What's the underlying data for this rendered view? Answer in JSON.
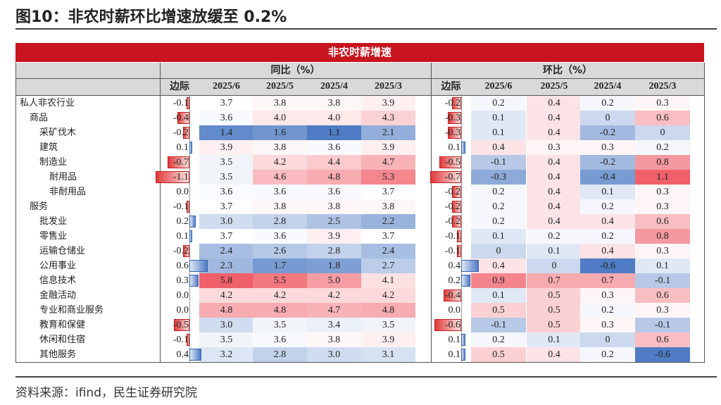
{
  "title": "图10：非农时薪环比增速放缓至 0.2%",
  "source": "资料来源：ifind，民生证券研究院",
  "chart_data": {
    "type": "table",
    "banner": "非农时薪增速",
    "groups": [
      {
        "label": "同比（%）",
        "margin_label": "边际",
        "columns": [
          "2025/6",
          "2025/5",
          "2025/4",
          "2025/3"
        ]
      },
      {
        "label": "环比（%）",
        "margin_label": "边际",
        "columns": [
          "2025/6",
          "2025/5",
          "2025/4",
          "2025/3"
        ]
      }
    ],
    "colors": {
      "banner": "#c8141e",
      "header_bg": "#d9d9d9",
      "high": "#f0606a",
      "low": "#4f7cc4"
    },
    "rows": [
      {
        "label": "私人非农行业",
        "indent": 0,
        "yoy_margin": "-0.1",
        "yoy": [
          "3.7",
          "3.8",
          "3.8",
          "3.9"
        ],
        "mom_margin": "-0.2",
        "mom": [
          "0.2",
          "0.4",
          "0.2",
          "0.3"
        ]
      },
      {
        "label": "商品",
        "indent": 1,
        "yoy_margin": "-0.4",
        "yoy": [
          "3.6",
          "4.0",
          "4.0",
          "4.3"
        ],
        "mom_margin": "-0.3",
        "mom": [
          "0.1",
          "0.4",
          "0",
          "0.6"
        ]
      },
      {
        "label": "采矿伐木",
        "indent": 2,
        "yoy_margin": "-0.2",
        "yoy": [
          "1.4",
          "1.6",
          "1.1",
          "2.1"
        ],
        "mom_margin": "-0.3",
        "mom": [
          "0.1",
          "0.4",
          "-0.2",
          "0"
        ]
      },
      {
        "label": "建筑",
        "indent": 2,
        "yoy_margin": "0.1",
        "yoy": [
          "3.9",
          "3.8",
          "3.6",
          "3.9"
        ],
        "mom_margin": "0.1",
        "mom": [
          "0.4",
          "0.3",
          "0.3",
          "0.2"
        ]
      },
      {
        "label": "制造业",
        "indent": 2,
        "yoy_margin": "-0.7",
        "yoy": [
          "3.5",
          "4.2",
          "4.4",
          "4.7"
        ],
        "mom_margin": "-0.5",
        "mom": [
          "-0.1",
          "0.4",
          "-0.2",
          "0.8"
        ]
      },
      {
        "label": "耐用品",
        "indent": 3,
        "yoy_margin": "-1.1",
        "yoy": [
          "3.5",
          "4.6",
          "4.8",
          "5.3"
        ],
        "mom_margin": "-0.7",
        "mom": [
          "-0.3",
          "0.4",
          "-0.4",
          "1.1"
        ]
      },
      {
        "label": "非耐用品",
        "indent": 3,
        "yoy_margin": "0.0",
        "yoy": [
          "3.6",
          "3.6",
          "3.6",
          "3.7"
        ],
        "mom_margin": "-0.2",
        "mom": [
          "0.2",
          "0.4",
          "0.1",
          "0.3"
        ]
      },
      {
        "label": "服务",
        "indent": 1,
        "yoy_margin": "-0.1",
        "yoy": [
          "3.7",
          "3.8",
          "3.8",
          "3.8"
        ],
        "mom_margin": "-0.2",
        "mom": [
          "0.2",
          "0.4",
          "0.2",
          "0.3"
        ]
      },
      {
        "label": "批发业",
        "indent": 2,
        "yoy_margin": "0.2",
        "yoy": [
          "3.0",
          "2.8",
          "2.5",
          "2.2"
        ],
        "mom_margin": "-0.2",
        "mom": [
          "0.2",
          "0.4",
          "0.4",
          "0.6"
        ]
      },
      {
        "label": "零售业",
        "indent": 2,
        "yoy_margin": "0.1",
        "yoy": [
          "3.7",
          "3.6",
          "3.9",
          "3.7"
        ],
        "mom_margin": "-0.1",
        "mom": [
          "0.1",
          "0.2",
          "0.2",
          "0.8"
        ]
      },
      {
        "label": "运输仓储业",
        "indent": 2,
        "yoy_margin": "-0.2",
        "yoy": [
          "2.4",
          "2.6",
          "2.8",
          "2.4"
        ],
        "mom_margin": "-0.1",
        "mom": [
          "0",
          "0.1",
          "0.4",
          "0.3"
        ]
      },
      {
        "label": "公用事业",
        "indent": 2,
        "yoy_margin": "0.6",
        "yoy": [
          "2.3",
          "1.7",
          "1.8",
          "2.7"
        ],
        "mom_margin": "0.4",
        "mom": [
          "0.4",
          "0",
          "-0.6",
          "0.1"
        ]
      },
      {
        "label": "信息技术",
        "indent": 2,
        "yoy_margin": "0.3",
        "yoy": [
          "5.8",
          "5.5",
          "5.0",
          "4.1"
        ],
        "mom_margin": "0.2",
        "mom": [
          "0.9",
          "0.7",
          "0.7",
          "-0.1"
        ]
      },
      {
        "label": "金融活动",
        "indent": 2,
        "yoy_margin": "0.0",
        "yoy": [
          "4.2",
          "4.2",
          "4.2",
          "4.2"
        ],
        "mom_margin": "-0.4",
        "mom": [
          "0.1",
          "0.5",
          "0.3",
          "0.6"
        ]
      },
      {
        "label": "专业和商业服务",
        "indent": 2,
        "yoy_margin": "0.0",
        "yoy": [
          "4.8",
          "4.8",
          "4.7",
          "4.8"
        ],
        "mom_margin": "0.0",
        "mom": [
          "0.5",
          "0.5",
          "0.2",
          "0.3"
        ]
      },
      {
        "label": "教育和保健",
        "indent": 2,
        "yoy_margin": "-0.5",
        "yoy": [
          "3.0",
          "3.5",
          "3.4",
          "3.5"
        ],
        "mom_margin": "-0.6",
        "mom": [
          "-0.1",
          "0.5",
          "0.3",
          "-0.1"
        ]
      },
      {
        "label": "休闲和住宿",
        "indent": 2,
        "yoy_margin": "-0.1",
        "yoy": [
          "3.5",
          "3.6",
          "3.8",
          "3.9"
        ],
        "mom_margin": "0.1",
        "mom": [
          "0.2",
          "0.1",
          "0",
          "0.6"
        ]
      },
      {
        "label": "其他服务",
        "indent": 2,
        "yoy_margin": "0.4",
        "yoy": [
          "3.2",
          "2.8",
          "3.0",
          "3.1"
        ],
        "mom_margin": "0.1",
        "mom": [
          "0.5",
          "0.4",
          "0.2",
          "-0.6"
        ]
      }
    ]
  }
}
